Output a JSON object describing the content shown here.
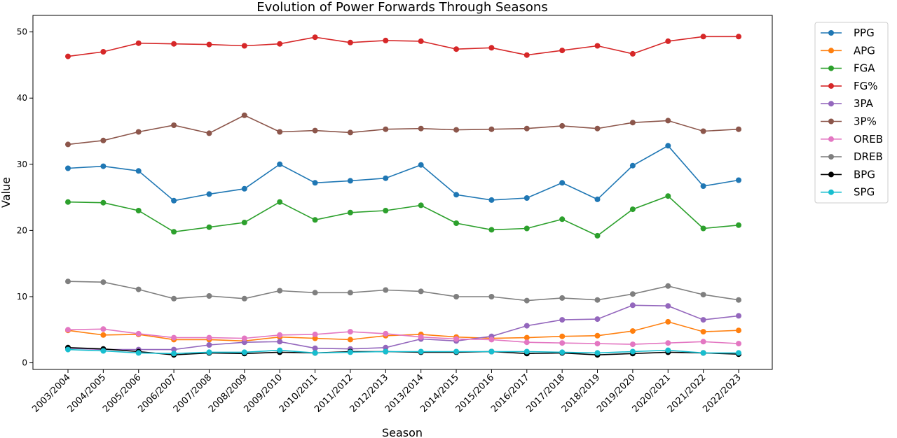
{
  "chart_data": {
    "type": "line",
    "title": "Evolution of Power Forwards Through Seasons",
    "xlabel": "Season",
    "ylabel": "Value",
    "ylim": [
      -1,
      52.5
    ],
    "yticks": [
      0,
      10,
      20,
      30,
      40,
      50
    ],
    "legend_position": "outside-right",
    "grid": false,
    "categories": [
      "2003/2004",
      "2004/2005",
      "2005/2006",
      "2006/2007",
      "2007/2008",
      "2008/2009",
      "2009/2010",
      "2010/2011",
      "2011/2012",
      "2012/2013",
      "2013/2014",
      "2014/2015",
      "2015/2016",
      "2016/2017",
      "2017/2018",
      "2018/2019",
      "2019/2020",
      "2020/2021",
      "2021/2022",
      "2022/2023"
    ],
    "series": [
      {
        "name": "PPG",
        "color": "#1f77b4",
        "values": [
          29.4,
          29.7,
          29.0,
          24.5,
          25.5,
          26.3,
          30.0,
          27.2,
          27.5,
          27.9,
          29.9,
          25.4,
          24.6,
          24.9,
          27.2,
          24.7,
          29.8,
          32.8,
          26.7,
          27.6
        ]
      },
      {
        "name": "APG",
        "color": "#ff7f0e",
        "values": [
          4.9,
          4.2,
          4.3,
          3.5,
          3.5,
          3.3,
          3.9,
          3.7,
          3.5,
          4.1,
          4.3,
          3.9,
          3.7,
          3.8,
          4.0,
          4.1,
          4.8,
          6.2,
          4.7,
          4.9
        ]
      },
      {
        "name": "FGA",
        "color": "#2ca02c",
        "values": [
          24.3,
          24.2,
          23.0,
          19.8,
          20.5,
          21.2,
          24.3,
          21.6,
          22.7,
          23.0,
          23.8,
          21.1,
          20.1,
          20.3,
          21.7,
          19.2,
          23.2,
          25.2,
          20.3,
          20.8
        ]
      },
      {
        "name": "FG%",
        "color": "#d62728",
        "values": [
          46.3,
          47.0,
          48.3,
          48.2,
          48.1,
          47.9,
          48.2,
          49.2,
          48.4,
          48.7,
          48.6,
          47.4,
          47.6,
          46.5,
          47.2,
          47.9,
          46.7,
          48.6,
          49.3,
          49.3
        ]
      },
      {
        "name": "3PA",
        "color": "#9467bd",
        "values": [
          2.2,
          2.0,
          2.0,
          2.0,
          2.7,
          3.1,
          3.2,
          2.2,
          2.1,
          2.3,
          3.6,
          3.3,
          4.0,
          5.6,
          6.5,
          6.6,
          8.7,
          8.6,
          6.5,
          7.1
        ]
      },
      {
        "name": "3P%",
        "color": "#8c564b",
        "values": [
          33.0,
          33.6,
          34.9,
          35.9,
          34.7,
          37.4,
          34.9,
          35.1,
          34.8,
          35.3,
          35.4,
          35.2,
          35.3,
          35.4,
          35.8,
          35.4,
          36.3,
          36.6,
          35.0,
          35.3
        ]
      },
      {
        "name": "OREB",
        "color": "#e377c2",
        "values": [
          5.0,
          5.1,
          4.4,
          3.8,
          3.8,
          3.7,
          4.2,
          4.3,
          4.7,
          4.4,
          3.9,
          3.6,
          3.5,
          3.1,
          3.0,
          2.9,
          2.8,
          3.0,
          3.2,
          2.9
        ]
      },
      {
        "name": "DREB",
        "color": "#7f7f7f",
        "values": [
          12.3,
          12.2,
          11.1,
          9.7,
          10.1,
          9.7,
          10.9,
          10.6,
          10.6,
          11.0,
          10.8,
          10.0,
          10.0,
          9.4,
          9.8,
          9.5,
          10.4,
          11.6,
          10.3,
          9.5
        ]
      },
      {
        "name": "BPG",
        "color": "#000000",
        "values": [
          2.3,
          2.1,
          1.7,
          1.2,
          1.5,
          1.4,
          1.6,
          1.5,
          1.7,
          1.7,
          1.6,
          1.6,
          1.7,
          1.4,
          1.5,
          1.2,
          1.4,
          1.6,
          1.5,
          1.3
        ]
      },
      {
        "name": "SPG",
        "color": "#17becf",
        "values": [
          2.0,
          1.8,
          1.5,
          1.4,
          1.6,
          1.6,
          1.9,
          1.5,
          1.6,
          1.7,
          1.7,
          1.7,
          1.7,
          1.7,
          1.6,
          1.5,
          1.7,
          1.9,
          1.5,
          1.5
        ]
      }
    ]
  }
}
